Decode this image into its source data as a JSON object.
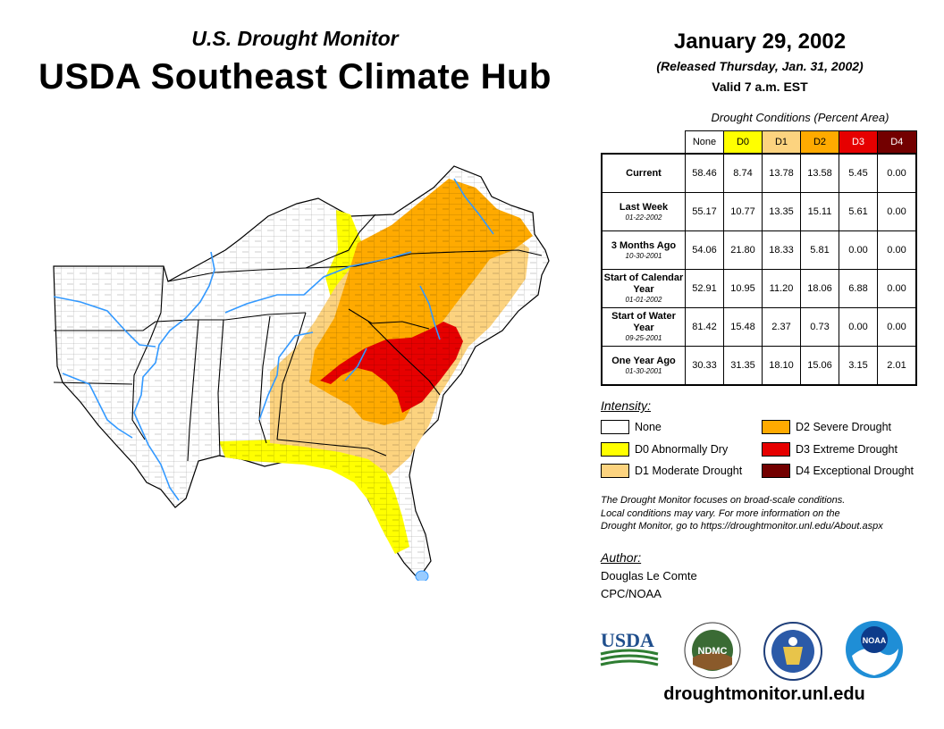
{
  "header": {
    "subtitle": "U.S. Drought Monitor",
    "title": "USDA Southeast Climate Hub",
    "date": "January 29, 2002",
    "released": "(Released Thursday, Jan. 31, 2002)",
    "valid": "Valid 7 a.m. EST"
  },
  "stats_table": {
    "caption": "Drought Conditions (Percent Area)",
    "columns": [
      "None",
      "D0",
      "D1",
      "D2",
      "D3",
      "D4"
    ],
    "column_colors": [
      "#ffffff",
      "#ffff00",
      "#fcd37f",
      "#ffaa00",
      "#e60000",
      "#730000"
    ],
    "rows": [
      {
        "label": "Current",
        "sub": "",
        "values": [
          "58.46",
          "8.74",
          "13.78",
          "13.58",
          "5.45",
          "0.00"
        ]
      },
      {
        "label": "Last Week",
        "sub": "01-22-2002",
        "values": [
          "55.17",
          "10.77",
          "13.35",
          "15.11",
          "5.61",
          "0.00"
        ]
      },
      {
        "label": "3 Months Ago",
        "sub": "10-30-2001",
        "values": [
          "54.06",
          "21.80",
          "18.33",
          "5.81",
          "0.00",
          "0.00"
        ]
      },
      {
        "label": "Start of Calendar Year",
        "sub": "01-01-2002",
        "values": [
          "52.91",
          "10.95",
          "11.20",
          "18.06",
          "6.88",
          "0.00"
        ]
      },
      {
        "label": "Start of Water Year",
        "sub": "09-25-2001",
        "values": [
          "81.42",
          "15.48",
          "2.37",
          "0.73",
          "0.00",
          "0.00"
        ]
      },
      {
        "label": "One Year Ago",
        "sub": "01-30-2001",
        "values": [
          "30.33",
          "31.35",
          "18.10",
          "15.06",
          "3.15",
          "2.01"
        ]
      }
    ]
  },
  "legend": {
    "title": "Intensity:",
    "items": [
      {
        "label": "None",
        "color": "#ffffff"
      },
      {
        "label": "D0 Abnormally Dry",
        "color": "#ffff00"
      },
      {
        "label": "D1 Moderate Drought",
        "color": "#fcd37f"
      },
      {
        "label": "D2 Severe Drought",
        "color": "#ffaa00"
      },
      {
        "label": "D3 Extreme Drought",
        "color": "#e60000"
      },
      {
        "label": "D4 Exceptional Drought",
        "color": "#730000"
      }
    ]
  },
  "note": {
    "line1": "The Drought Monitor focuses on broad-scale conditions.",
    "line2": "Local conditions may vary. For more information on the",
    "line3": "Drought Monitor, go to https://droughtmonitor.unl.edu/About.aspx"
  },
  "author": {
    "title": "Author:",
    "name": "Douglas Le Comte",
    "org": "CPC/NOAA"
  },
  "logos": {
    "usda": "USDA",
    "ndmc": "NDMC",
    "noaa": "NOAA"
  },
  "url": "droughtmonitor.unl.edu",
  "colors": {
    "none": "#ffffff",
    "d0": "#ffff00",
    "d1": "#fcd37f",
    "d2": "#ffaa00",
    "d3": "#e60000",
    "d4": "#730000",
    "water": "#3399ff"
  }
}
